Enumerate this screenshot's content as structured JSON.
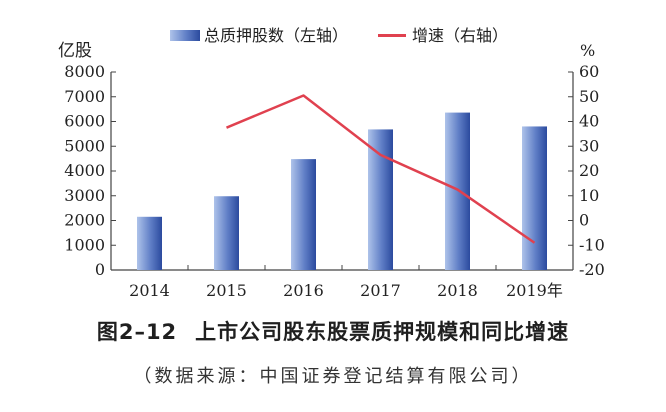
{
  "chart_data": {
    "type": "bar",
    "categories": [
      "2014",
      "2015",
      "2016",
      "2017",
      "2018",
      "2019年"
    ],
    "series": [
      {
        "name": "总质押股数（左轴）",
        "type": "bar",
        "axis": "left",
        "values": [
          2150,
          2980,
          4480,
          5680,
          6360,
          5800
        ]
      },
      {
        "name": "增速（右轴）",
        "type": "line",
        "axis": "right",
        "values": [
          null,
          37.5,
          50.5,
          26.5,
          12.5,
          -9
        ]
      }
    ],
    "left_axis": {
      "unit": "亿股",
      "ylim": [
        0,
        8000
      ],
      "ticks": [
        "0",
        "1000",
        "2000",
        "3000",
        "4000",
        "5000",
        "6000",
        "7000",
        "8000"
      ]
    },
    "right_axis": {
      "unit": "%",
      "ylim": [
        -20,
        60
      ],
      "ticks": [
        "-20",
        "-10",
        "0",
        "10",
        "20",
        "30",
        "40",
        "50",
        "60"
      ]
    },
    "legend_position": "top",
    "grid": false,
    "colors": {
      "bar_light": "#a9bfe6",
      "bar_dark": "#2f4fa3",
      "line": "#e0414f",
      "axis": "#444444"
    }
  },
  "figure": {
    "number": "图2–12",
    "title": "上市公司股东股票质押规模和同比增速",
    "source": "（数据来源：中国证券登记结算有限公司）"
  }
}
